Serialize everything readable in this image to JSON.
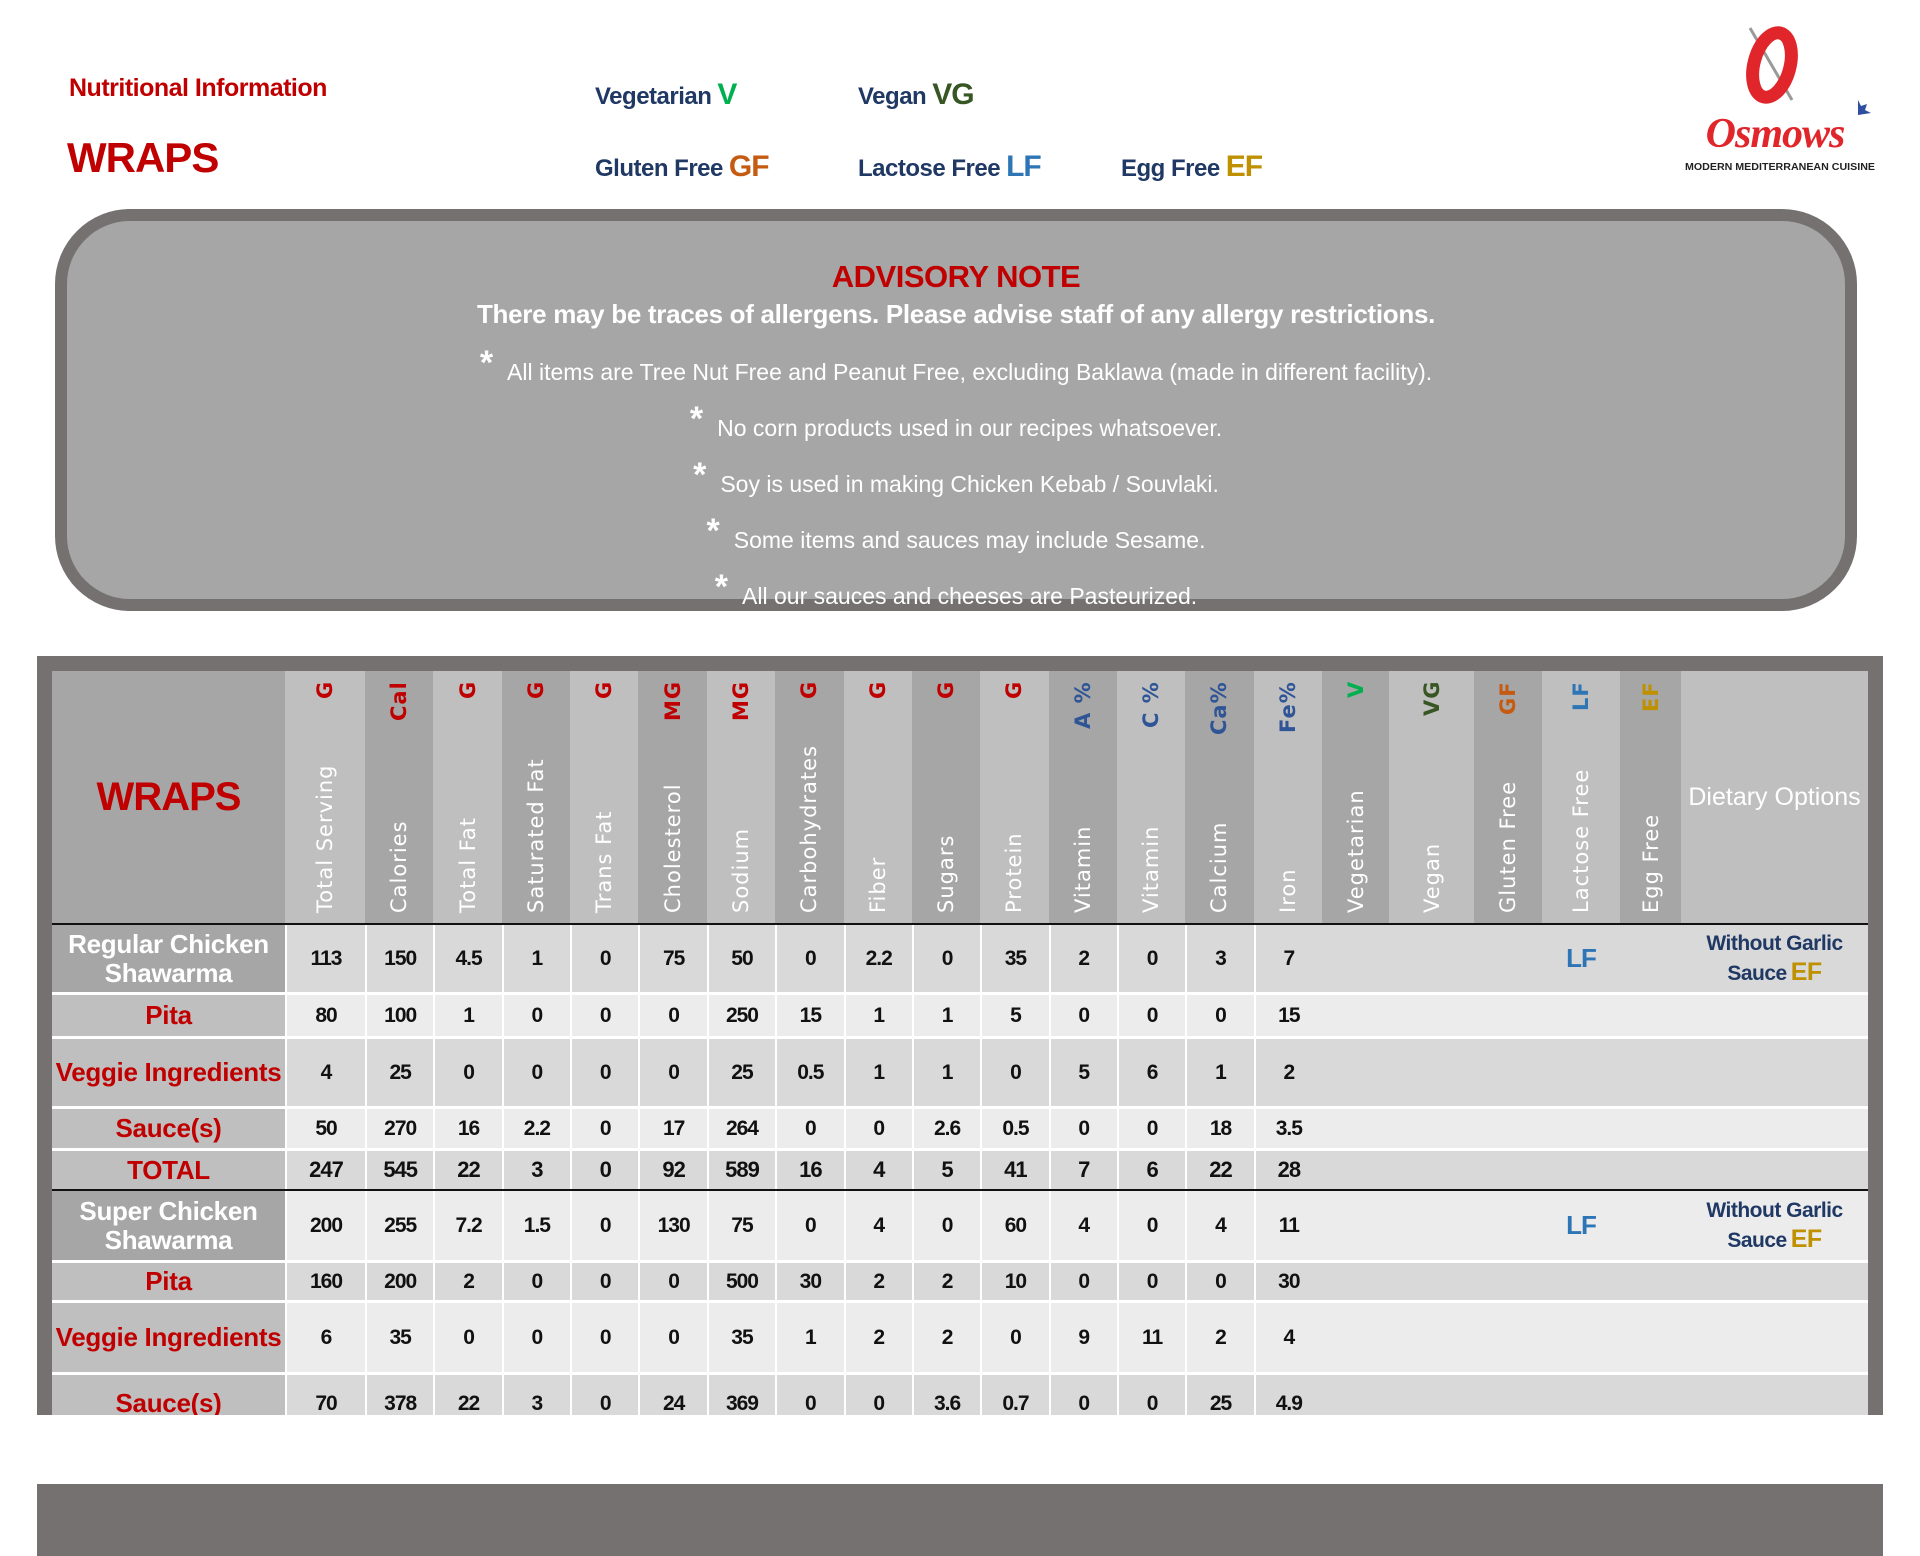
{
  "header": {
    "subtitle": "Nutritional Information",
    "title": "WRAPS"
  },
  "legend": [
    {
      "label": "Vegetarian",
      "code": "V",
      "color": "#00b050"
    },
    {
      "label": "Vegan",
      "code": "VG",
      "color": "#375623"
    },
    {
      "label": "Gluten Free",
      "code": "GF",
      "color": "#c55a11"
    },
    {
      "label": "Lactose Free",
      "code": "LF",
      "color": "#2e75b6"
    },
    {
      "label": "Egg Free",
      "code": "EF",
      "color": "#bf9000"
    }
  ],
  "logo": {
    "name": "Osmow's",
    "tagline": "MODERN MEDITERRANEAN CUISINE"
  },
  "advisory": {
    "title": "ADVISORY NOTE",
    "subtitle": "There may be traces of allergens. Please advise staff of any allergy restrictions.",
    "bullet_symbol": "*",
    "items": [
      "All items are Tree Nut Free and Peanut Free, excluding Baklawa (made in different facility).",
      "No corn products used in our recipes whatsoever.",
      "Soy is used in making Chicken Kebab / Souvlaki.",
      "Some items and sauces may include Sesame.",
      "All our sauces and cheeses are Pasteurized."
    ]
  },
  "table": {
    "section_label": "WRAPS",
    "columns": [
      {
        "name": "Total Serving",
        "unit": "G",
        "unit_color": "#c00000"
      },
      {
        "name": "Calories",
        "unit": "Cal",
        "unit_color": "#c00000"
      },
      {
        "name": "Total Fat",
        "unit": "G",
        "unit_color": "#c00000"
      },
      {
        "name": "Saturated Fat",
        "unit": "G",
        "unit_color": "#c00000"
      },
      {
        "name": "Trans Fat",
        "unit": "G",
        "unit_color": "#c00000"
      },
      {
        "name": "Cholesterol",
        "unit": "MG",
        "unit_color": "#c00000"
      },
      {
        "name": "Sodium",
        "unit": "MG",
        "unit_color": "#c00000"
      },
      {
        "name": "Carbohydrates",
        "unit": "G",
        "unit_color": "#c00000"
      },
      {
        "name": "Fiber",
        "unit": "G",
        "unit_color": "#c00000"
      },
      {
        "name": "Sugars",
        "unit": "G",
        "unit_color": "#c00000"
      },
      {
        "name": "Protein",
        "unit": "G",
        "unit_color": "#c00000"
      },
      {
        "name": "Vitamin",
        "unit": "A %",
        "unit_color": "#2f5597"
      },
      {
        "name": "Vitamin",
        "unit": "C %",
        "unit_color": "#2f5597"
      },
      {
        "name": "Calcium",
        "unit": "Ca%",
        "unit_color": "#2f5597"
      },
      {
        "name": "Iron",
        "unit": "Fe%",
        "unit_color": "#2f5597"
      },
      {
        "name": "Vegetarian",
        "unit": "V",
        "unit_color": "#00b050"
      },
      {
        "name": "Vegan",
        "unit": "VG",
        "unit_color": "#375623"
      },
      {
        "name": "Gluten Free",
        "unit": "GF",
        "unit_color": "#c55a11"
      },
      {
        "name": "Lactose Free",
        "unit": "LF",
        "unit_color": "#2e75b6"
      },
      {
        "name": "Egg  Free",
        "unit": "EF",
        "unit_color": "#bf9000"
      }
    ],
    "dietary_header": "Dietary Options",
    "groups": [
      {
        "rows": [
          {
            "label": "Regular Chicken Shawarma",
            "values": [
              "113",
              "150",
              "4.5",
              "1",
              "0",
              "75",
              "50",
              "0",
              "2.2",
              "0",
              "35",
              "2",
              "0",
              "3",
              "7"
            ],
            "flags": [
              "",
              "",
              "",
              "LF",
              ""
            ],
            "dietary": {
              "text": "Without Garlic Sauce",
              "code": "EF"
            }
          },
          {
            "label": "Pita",
            "values": [
              "80",
              "100",
              "1",
              "0",
              "0",
              "0",
              "250",
              "15",
              "1",
              "1",
              "5",
              "0",
              "0",
              "0",
              "15"
            ],
            "flags": [
              "",
              "",
              "",
              "",
              ""
            ]
          },
          {
            "label": "Veggie Ingredients",
            "values": [
              "4",
              "25",
              "0",
              "0",
              "0",
              "0",
              "25",
              "0.5",
              "1",
              "1",
              "0",
              "5",
              "6",
              "1",
              "2"
            ],
            "flags": [
              "",
              "",
              "",
              "",
              ""
            ]
          },
          {
            "label": "Sauce(s)",
            "values": [
              "50",
              "270",
              "16",
              "2.2",
              "0",
              "17",
              "264",
              "0",
              "0",
              "2.6",
              "0.5",
              "0",
              "0",
              "18",
              "3.5"
            ],
            "flags": [
              "",
              "",
              "",
              "",
              ""
            ]
          },
          {
            "label": "TOTAL",
            "total": true,
            "values": [
              "247",
              "545",
              "22",
              "3",
              "0",
              "92",
              "589",
              "16",
              "4",
              "5",
              "41",
              "7",
              "6",
              "22",
              "28"
            ],
            "flags": [
              "",
              "",
              "",
              "",
              ""
            ]
          }
        ]
      },
      {
        "rows": [
          {
            "label": "Super Chicken Shawarma",
            "values": [
              "200",
              "255",
              "7.2",
              "1.5",
              "0",
              "130",
              "75",
              "0",
              "4",
              "0",
              "60",
              "4",
              "0",
              "4",
              "11"
            ],
            "flags": [
              "",
              "",
              "",
              "LF",
              ""
            ],
            "dietary": {
              "text": "Without Garlic Sauce",
              "code": "EF"
            }
          },
          {
            "label": "Pita",
            "values": [
              "160",
              "200",
              "2",
              "0",
              "0",
              "0",
              "500",
              "30",
              "2",
              "2",
              "10",
              "0",
              "0",
              "0",
              "30"
            ],
            "flags": [
              "",
              "",
              "",
              "",
              ""
            ]
          },
          {
            "label": "Veggie Ingredients",
            "values": [
              "6",
              "35",
              "0",
              "0",
              "0",
              "0",
              "35",
              "1",
              "2",
              "2",
              "0",
              "9",
              "11",
              "2",
              "4"
            ],
            "flags": [
              "",
              "",
              "",
              "",
              ""
            ]
          },
          {
            "label": "Sauce(s)",
            "values": [
              "70",
              "378",
              "22",
              "3",
              "0",
              "24",
              "369",
              "0",
              "0",
              "3.6",
              "0.7",
              "0",
              "0",
              "25",
              "4.9"
            ],
            "flags": [
              "",
              "",
              "",
              "",
              ""
            ]
          }
        ]
      }
    ]
  }
}
